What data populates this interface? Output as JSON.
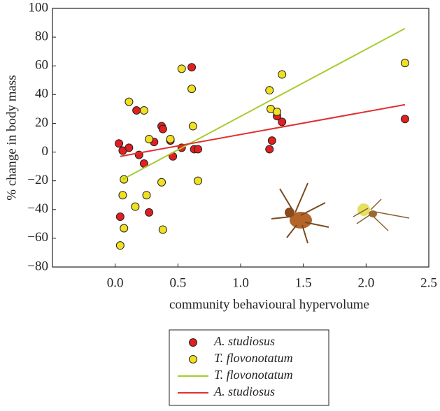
{
  "chart_data": {
    "type": "scatter",
    "xlabel": "community behavioural hypervolume",
    "ylabel": "% change in body mass",
    "xlim": [
      -0.5,
      2.5
    ],
    "ylim": [
      -80,
      100
    ],
    "xticks": [
      {
        "value": 0,
        "label": "0.0"
      },
      {
        "value": 0.5,
        "label": "0.5"
      },
      {
        "value": 1,
        "label": "1.0"
      },
      {
        "value": 1.5,
        "label": "1.5"
      },
      {
        "value": 2,
        "label": "2.0"
      },
      {
        "value": 2.5,
        "label": "2.5"
      }
    ],
    "yticks": [
      {
        "value": -80,
        "label": "−80"
      },
      {
        "value": -60,
        "label": "−60"
      },
      {
        "value": -40,
        "label": "−40"
      },
      {
        "value": -20,
        "label": "−20"
      },
      0,
      20,
      40,
      60,
      80,
      100
    ],
    "series": [
      {
        "name": "A. studiosus",
        "type": "scatter",
        "color": "#e02020",
        "x": [
          0.03,
          0.06,
          0.11,
          0.17,
          0.19,
          0.23,
          0.31,
          0.37,
          0.38,
          0.44,
          0.46,
          0.53,
          0.61,
          0.63,
          0.66,
          0.27,
          0.04,
          1.23,
          1.25,
          1.29,
          1.33,
          2.31
        ],
        "values": [
          6,
          1,
          3,
          29,
          -2,
          -8,
          7,
          18,
          16,
          8,
          -3,
          3,
          59,
          2,
          2,
          -42,
          -45,
          2,
          8,
          25,
          21,
          23
        ]
      },
      {
        "name": "T. flovonotatum",
        "type": "scatter",
        "color": "#f0e020",
        "x": [
          0.04,
          0.06,
          0.07,
          0.07,
          0.11,
          0.16,
          0.23,
          0.27,
          0.25,
          0.37,
          0.38,
          0.44,
          0.53,
          0.61,
          0.62,
          0.66,
          1.23,
          1.24,
          1.29,
          1.33,
          2.31
        ],
        "values": [
          -65,
          -30,
          -19,
          -53,
          35,
          -38,
          29,
          9,
          -30,
          -21,
          -54,
          9,
          58,
          44,
          18,
          -20,
          43,
          30,
          28,
          54,
          62
        ]
      },
      {
        "name": "T. flovonotatum",
        "type": "line",
        "color": "#a8cc30",
        "x": [
          0.06,
          2.31
        ],
        "values": [
          -19,
          86
        ]
      },
      {
        "name": "A. studiosus",
        "type": "line",
        "color": "#e03030",
        "x": [
          0.04,
          2.31
        ],
        "values": [
          -3,
          33
        ]
      }
    ]
  }
}
